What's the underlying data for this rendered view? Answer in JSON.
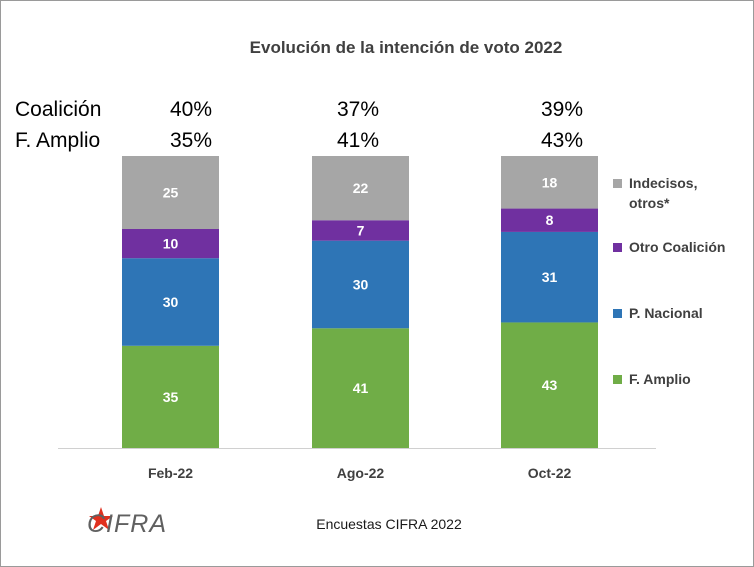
{
  "chart_data": {
    "type": "bar",
    "stacked": true,
    "title": "Evolución de la intención de voto 2022",
    "categories": [
      "Feb-22",
      "Ago-22",
      "Oct-22"
    ],
    "series": [
      {
        "name": "F. Amplio",
        "values": [
          35,
          41,
          43
        ],
        "color": "#70ad47"
      },
      {
        "name": "P. Nacional",
        "values": [
          30,
          30,
          31
        ],
        "color": "#2e75b6"
      },
      {
        "name": "Otro Coalición",
        "values": [
          10,
          7,
          8
        ],
        "color": "#7030a0"
      },
      {
        "name": "Indecisos, otros*",
        "values": [
          25,
          22,
          18
        ],
        "color": "#a6a6a6"
      }
    ],
    "legend_position": "right",
    "ylim": [
      0,
      100
    ],
    "summary_rows": [
      {
        "label": "Coalición",
        "values": [
          "40%",
          "37%",
          "39%"
        ]
      },
      {
        "label": "F. Amplio",
        "values": [
          "35%",
          "41%",
          "43%"
        ]
      }
    ],
    "footer": "Encuestas CIFRA 2022",
    "logo": "CIFRA"
  }
}
